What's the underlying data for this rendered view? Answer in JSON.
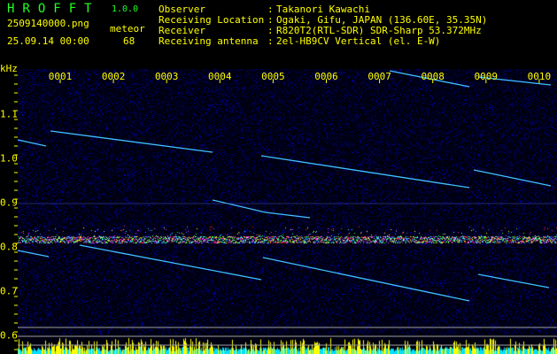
{
  "header": {
    "logo": "HROFFT",
    "version": "1.0.0",
    "filename": "2509140000.png",
    "datetime": "25.09.14 00:00",
    "meteor_label": "meteor",
    "meteor_count": "68"
  },
  "info": {
    "observer_label": "Observer",
    "observer": "Takanori Kawachi",
    "location_label": "Receiving Location",
    "location": "Ogaki, Gifu, JAPAN (136.60E, 35.35N)",
    "receiver_label": "Receiver",
    "receiver": "R820T2(RTL-SDR) SDR-Sharp 53.372MHz",
    "antenna_label": "Receiving antenna",
    "antenna": "2el-HB9CV Vertical (el. E-W)"
  },
  "axis": {
    "unit": "kHz",
    "y_ticks": [
      "1.1",
      "1.0",
      "0.9",
      "0.8",
      "0.7",
      "0.6"
    ],
    "time_ticks": [
      "0001",
      "0002",
      "0003",
      "0004",
      "0005",
      "0006",
      "0007",
      "0008",
      "0009",
      "0010"
    ]
  },
  "colors": {
    "text": "#ffff00",
    "logo": "#22ff22",
    "background": "#000000",
    "noise": "#1020a0",
    "trace": "#40c0ff",
    "bars_yellow": "#ffff00",
    "bars_cyan": "#00ffff"
  }
}
